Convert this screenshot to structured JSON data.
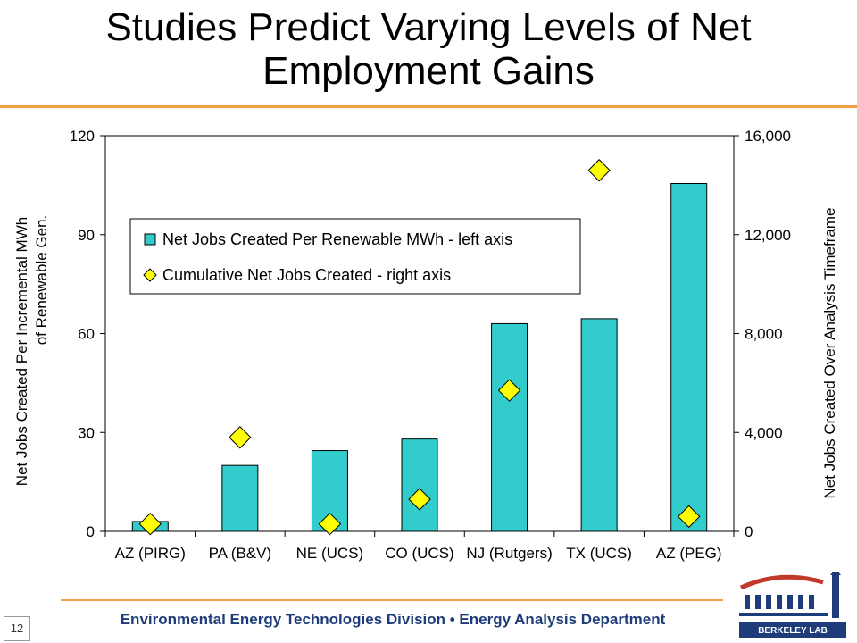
{
  "slide": {
    "title": "Studies Predict Varying Levels of Net Employment Gains",
    "footer": "Environmental Energy Technologies Division • Energy Analysis Department",
    "page_number": "12",
    "logo_text": "BERKELEY LAB"
  },
  "colors": {
    "bar_fill": "#33cccc",
    "marker_fill": "#ffff00",
    "rule": "#f0a040",
    "footer_text": "#1f3c7a"
  },
  "chart_data": {
    "type": "bar",
    "categories": [
      "AZ (PIRG)",
      "PA (B&V)",
      "NE (UCS)",
      "CO (UCS)",
      "NJ (Rutgers)",
      "TX (UCS)",
      "AZ (PEG)"
    ],
    "series": [
      {
        "name": "Net Jobs Created Per Renewable MWh - left axis",
        "type": "bar",
        "axis": "left",
        "values": [
          3,
          20,
          24.5,
          28,
          63,
          64.5,
          105.5
        ]
      },
      {
        "name": "Cumulative Net Jobs Created - right axis",
        "type": "scatter",
        "marker": "diamond",
        "axis": "right",
        "values": [
          300,
          3800,
          300,
          1300,
          5700,
          14600,
          600
        ]
      }
    ],
    "ylabel_left": "Net Jobs Created Per Incremental MWh of Renewable Gen.",
    "ylabel_right": "Net Jobs Created Over Analysis Timeframe",
    "ylim_left": [
      0,
      120
    ],
    "yticks_left": [
      "0",
      "30",
      "60",
      "90",
      "120"
    ],
    "ylim_right": [
      0,
      16000
    ],
    "yticks_right": [
      "0",
      "4,000",
      "8,000",
      "12,000",
      "16,000"
    ],
    "grid": false,
    "legend_position": "upper-left inside plot"
  }
}
